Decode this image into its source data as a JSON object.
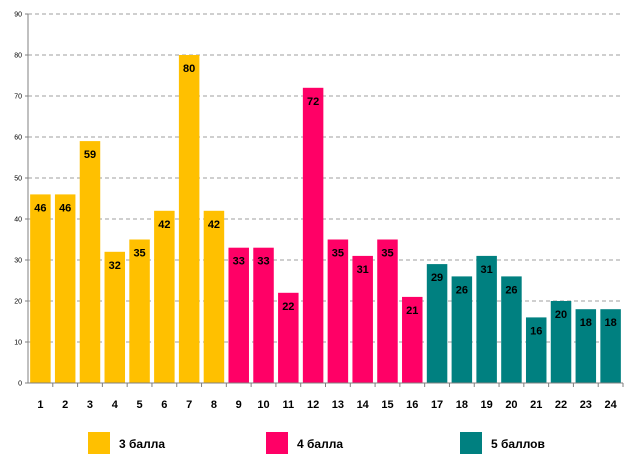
{
  "chart_data": {
    "type": "bar",
    "title": "",
    "xlabel": "",
    "ylabel": "",
    "ylim": [
      0,
      90
    ],
    "yticks": [
      0,
      10,
      20,
      30,
      40,
      50,
      60,
      70,
      80,
      90
    ],
    "grid": true,
    "legend_position": "bottom",
    "categories": [
      "1",
      "2",
      "3",
      "4",
      "5",
      "6",
      "7",
      "8",
      "9",
      "10",
      "11",
      "12",
      "13",
      "14",
      "15",
      "16",
      "17",
      "18",
      "19",
      "20",
      "21",
      "22",
      "23",
      "24"
    ],
    "values": [
      46,
      46,
      59,
      32,
      35,
      42,
      80,
      42,
      33,
      33,
      22,
      72,
      35,
      31,
      35,
      21,
      29,
      26,
      31,
      26,
      16,
      20,
      18,
      18
    ],
    "groups": [
      {
        "name": "3 балла",
        "color": "#FFC000",
        "from": 0,
        "to": 7
      },
      {
        "name": "4 балла",
        "color": "#FF0066",
        "from": 8,
        "to": 15
      },
      {
        "name": "5 баллов",
        "color": "#008080",
        "from": 16,
        "to": 23
      }
    ]
  }
}
